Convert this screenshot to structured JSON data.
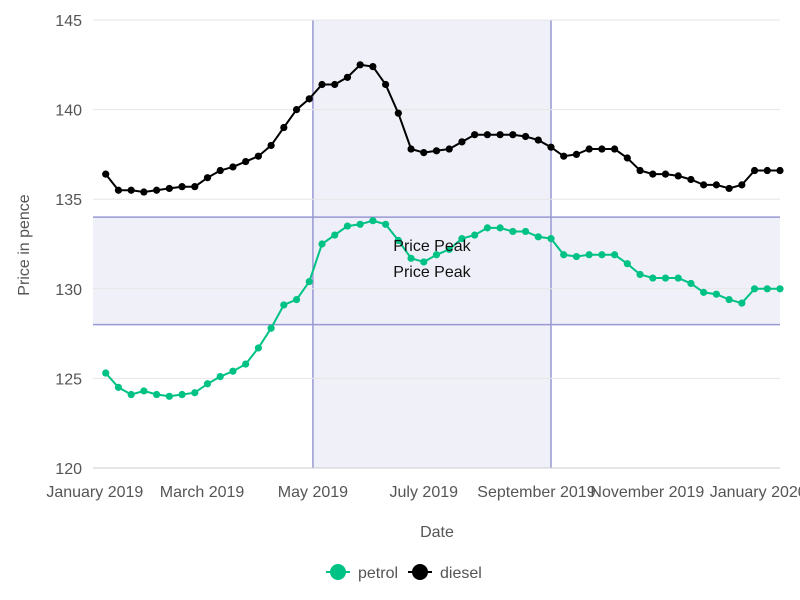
{
  "chart_data": {
    "type": "line",
    "title": "",
    "xlabel": "Date",
    "ylabel": "Price in pence",
    "x_tick_labels": [
      "January 2019",
      "March 2019",
      "May 2019",
      "July 2019",
      "September 2019",
      "November 2019",
      "January 2020"
    ],
    "x_range": [
      "2018-12-31",
      "2020-01-13"
    ],
    "y_ticks": [
      120,
      125,
      130,
      135,
      140,
      145
    ],
    "ylim": [
      120,
      145
    ],
    "grid": "horizontal",
    "legend_position": "bottom",
    "x": [
      "2019-01-07",
      "2019-01-14",
      "2019-01-21",
      "2019-01-28",
      "2019-02-04",
      "2019-02-11",
      "2019-02-18",
      "2019-02-25",
      "2019-03-04",
      "2019-03-11",
      "2019-03-18",
      "2019-03-25",
      "2019-04-01",
      "2019-04-08",
      "2019-04-15",
      "2019-04-22",
      "2019-04-29",
      "2019-05-06",
      "2019-05-13",
      "2019-05-20",
      "2019-05-27",
      "2019-06-03",
      "2019-06-10",
      "2019-06-17",
      "2019-06-24",
      "2019-07-01",
      "2019-07-08",
      "2019-07-15",
      "2019-07-22",
      "2019-07-29",
      "2019-08-05",
      "2019-08-12",
      "2019-08-19",
      "2019-08-26",
      "2019-09-02",
      "2019-09-09",
      "2019-09-16",
      "2019-09-23",
      "2019-09-30",
      "2019-10-07",
      "2019-10-14",
      "2019-10-21",
      "2019-10-28",
      "2019-11-04",
      "2019-11-11",
      "2019-11-18",
      "2019-11-25",
      "2019-12-02",
      "2019-12-09",
      "2019-12-16",
      "2019-12-23",
      "2019-12-30",
      "2020-01-06",
      "2020-01-13"
    ],
    "series": [
      {
        "name": "petrol",
        "color": "#00c284",
        "values": [
          125.3,
          124.5,
          124.1,
          124.3,
          124.1,
          124.0,
          124.1,
          124.2,
          124.7,
          125.1,
          125.4,
          125.8,
          126.7,
          127.8,
          129.1,
          129.4,
          130.4,
          132.5,
          133.0,
          133.5,
          133.6,
          133.8,
          133.6,
          132.7,
          131.7,
          131.5,
          131.9,
          132.2,
          132.8,
          133.0,
          133.4,
          133.4,
          133.2,
          133.2,
          132.9,
          132.8,
          131.9,
          131.8,
          131.9,
          131.9,
          131.9,
          131.4,
          130.8,
          130.6,
          130.6,
          130.6,
          130.3,
          129.8,
          129.7,
          129.4,
          129.2,
          130.0,
          130.0,
          130.0
        ],
        "marker": "circle"
      },
      {
        "name": "diesel",
        "color": "#000000",
        "values": [
          136.4,
          135.5,
          135.5,
          135.4,
          135.5,
          135.6,
          135.7,
          135.7,
          136.2,
          136.6,
          136.8,
          137.1,
          137.4,
          138.0,
          139.0,
          140.0,
          140.6,
          141.4,
          141.4,
          141.8,
          142.5,
          142.4,
          141.4,
          139.8,
          137.8,
          137.6,
          137.7,
          137.8,
          138.2,
          138.6,
          138.6,
          138.6,
          138.6,
          138.5,
          138.3,
          137.9,
          137.4,
          137.5,
          137.8,
          137.8,
          137.8,
          137.3,
          136.6,
          136.4,
          136.4,
          136.3,
          136.1,
          135.8,
          135.8,
          135.6,
          135.8,
          136.6,
          136.6,
          136.6
        ],
        "marker": "circle"
      }
    ],
    "annotations": {
      "x_band": {
        "x0": "2019-05-01",
        "x1": "2019-09-09",
        "label": "Price Peak",
        "fill": "#eeeef8",
        "border": "#9898d4"
      },
      "y_band": {
        "y0": 128,
        "y1": 134,
        "label": "Price Peak",
        "fill": "#eeeef8",
        "border": "#9898d4"
      }
    }
  },
  "grid_color": "#e6e6e6",
  "axis_color": "#cccccc"
}
